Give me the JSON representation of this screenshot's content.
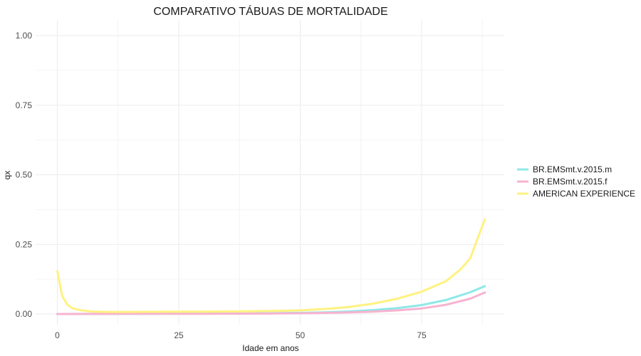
{
  "chart_data": {
    "type": "line",
    "title": "COMPARATIVO TÁBUAS DE MORTALIDADE",
    "xlabel": "Idade em anos",
    "ylabel": "qx",
    "xlim": [
      0,
      88
    ],
    "ylim": [
      0,
      1
    ],
    "x_ticks": [
      "0",
      "25",
      "50",
      "75"
    ],
    "y_ticks": [
      "0.00",
      "0.25",
      "0.50",
      "0.75",
      "1.00"
    ],
    "grid": true,
    "legend_position": "right",
    "series": [
      {
        "name": "BR.EMSmt.v.2015.m",
        "color": "#8ee8e8",
        "x": [
          0,
          10,
          20,
          30,
          40,
          45,
          50,
          55,
          60,
          65,
          70,
          75,
          80,
          85,
          88
        ],
        "y": [
          0.0,
          0.0005,
          0.001,
          0.0015,
          0.002,
          0.003,
          0.004,
          0.006,
          0.009,
          0.014,
          0.021,
          0.032,
          0.05,
          0.078,
          0.1
        ]
      },
      {
        "name": "BR.EMSmt.v.2015.f",
        "color": "#f7b3d0",
        "x": [
          0,
          10,
          20,
          30,
          40,
          45,
          50,
          55,
          60,
          65,
          70,
          75,
          80,
          85,
          88
        ],
        "y": [
          0.0,
          0.0003,
          0.0005,
          0.0008,
          0.0012,
          0.0018,
          0.0026,
          0.0038,
          0.0056,
          0.0085,
          0.013,
          0.02,
          0.033,
          0.055,
          0.077
        ]
      },
      {
        "name": "AMERICAN EXPERIENCE",
        "color": "#fff27f",
        "x": [
          0,
          1,
          2,
          3,
          4,
          5,
          7,
          10,
          15,
          20,
          30,
          40,
          45,
          50,
          55,
          60,
          65,
          70,
          75,
          80,
          83,
          85,
          88
        ],
        "y": [
          0.154,
          0.065,
          0.035,
          0.022,
          0.016,
          0.013,
          0.009,
          0.0075,
          0.0075,
          0.008,
          0.0085,
          0.01,
          0.011,
          0.013,
          0.018,
          0.025,
          0.037,
          0.055,
          0.08,
          0.118,
          0.16,
          0.2,
          0.34
        ]
      }
    ]
  }
}
